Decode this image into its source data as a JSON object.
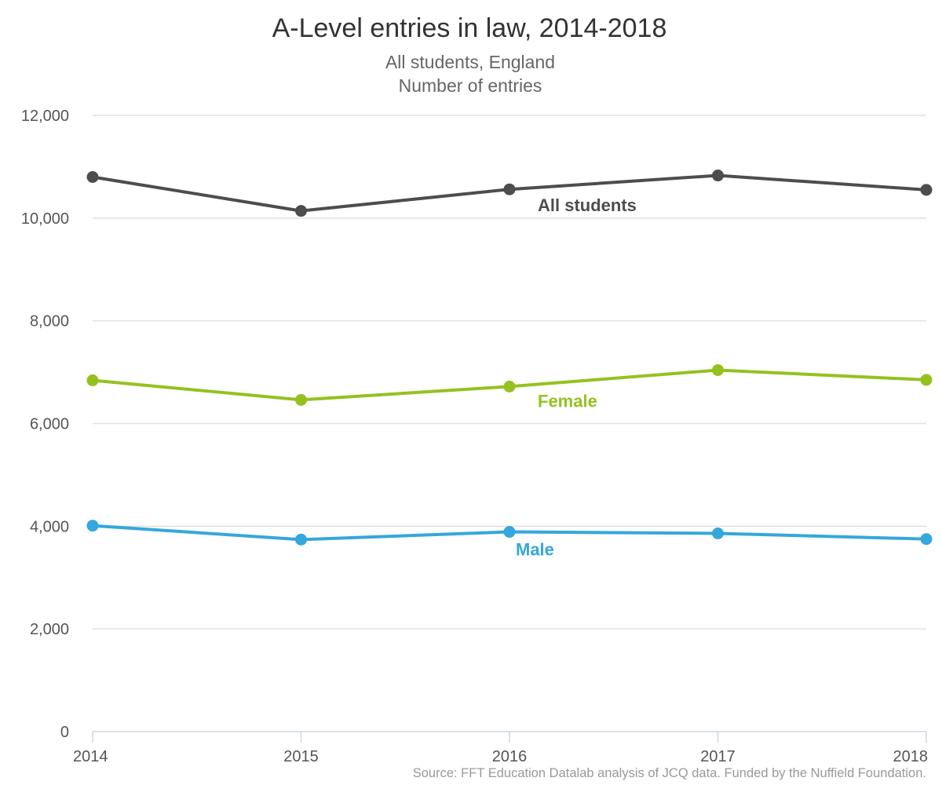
{
  "chart_data": {
    "type": "line",
    "title": "A-Level entries in law, 2014-2018",
    "subtitle_lines": [
      "All students, England",
      "Number of entries"
    ],
    "x": [
      "2014",
      "2015",
      "2016",
      "2017",
      "2018"
    ],
    "ylim": [
      0,
      12000
    ],
    "y_ticks": [
      0,
      2000,
      4000,
      6000,
      8000,
      10000,
      12000
    ],
    "y_tick_labels": [
      "0",
      "2,000",
      "4,000",
      "6,000",
      "8,000",
      "10,000",
      "12,000"
    ],
    "grid": true,
    "series": [
      {
        "name": "All students",
        "values": [
          10800,
          10140,
          10560,
          10830,
          10550
        ],
        "color": "#4d4d4d"
      },
      {
        "name": "Female",
        "values": [
          6840,
          6460,
          6720,
          7040,
          6850
        ],
        "color": "#95c11f"
      },
      {
        "name": "Male",
        "values": [
          4010,
          3740,
          3890,
          3860,
          3750
        ],
        "color": "#35a7dc"
      }
    ],
    "source": "Source: FFT Education Datalab analysis of JCQ data. Funded by the Nuffield Foundation."
  }
}
